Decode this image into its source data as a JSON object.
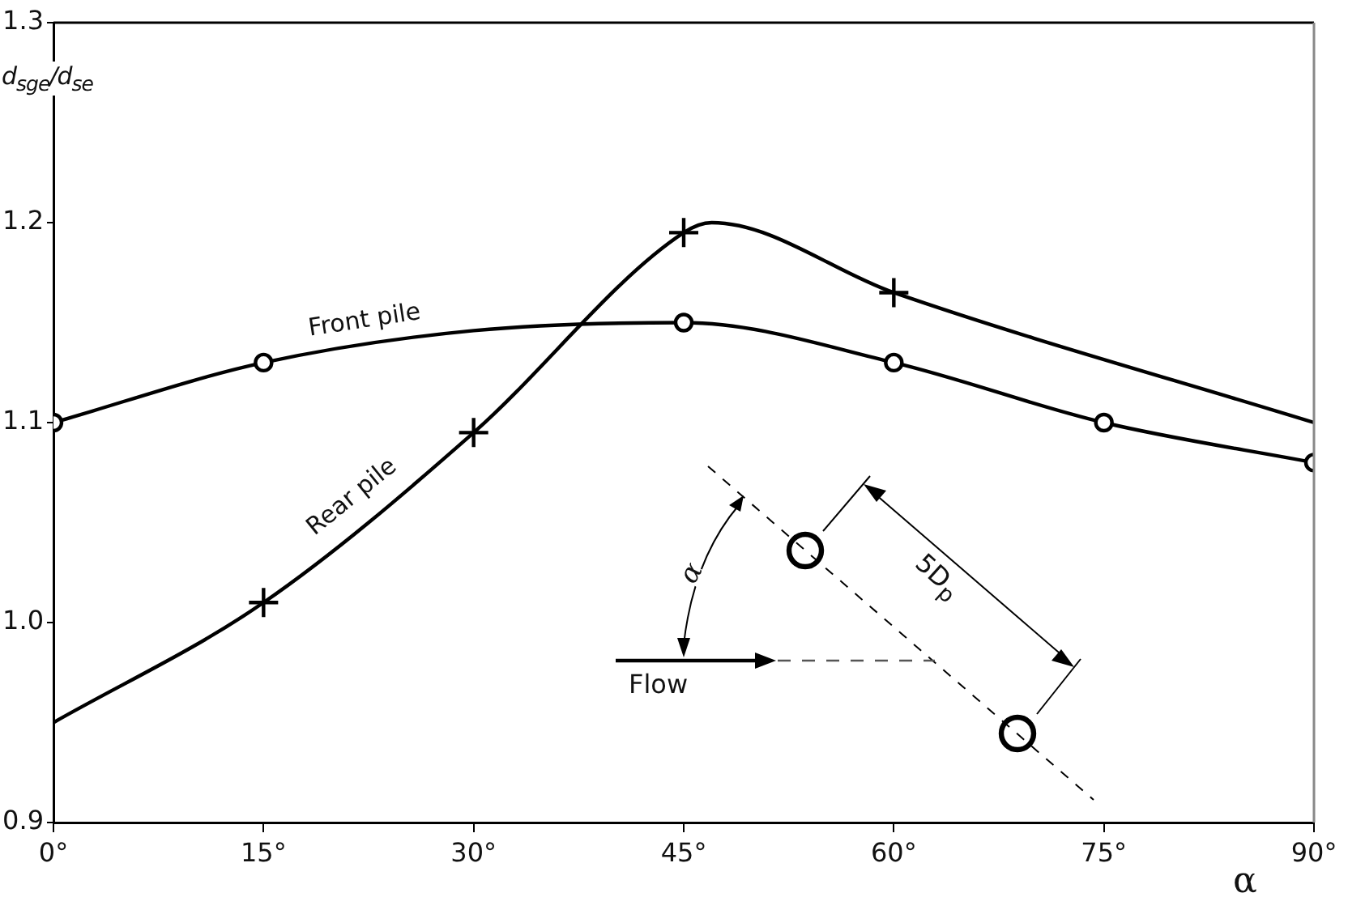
{
  "chart_data": {
    "type": "line",
    "xlabel": "α",
    "ylabel": "d$_{sge}$/d$_{se}$",
    "xlim": [
      0,
      90
    ],
    "xticks": [
      {
        "value": 0,
        "label": "0°"
      },
      {
        "value": 15,
        "label": "15°"
      },
      {
        "value": 30,
        "label": "30°"
      },
      {
        "value": 45,
        "label": "45°"
      },
      {
        "value": 60,
        "label": "60°"
      },
      {
        "value": 75,
        "label": "75°"
      },
      {
        "value": 90,
        "label": "90°"
      }
    ],
    "ylim": [
      0.9,
      1.3
    ],
    "yticks": [
      0.9,
      {
        "value": 1.0,
        "label": "1.0"
      },
      1.1,
      1.2,
      1.3
    ],
    "grid": false,
    "legend": false,
    "series": [
      {
        "name": "Front pile",
        "type": "line",
        "x": [
          0,
          15,
          30,
          45,
          60,
          75,
          90
        ],
        "values": [
          1.1,
          1.13,
          1.146,
          1.15,
          1.13,
          1.1,
          1.08
        ],
        "color": "#000000",
        "marker": "none"
      },
      {
        "type": "scatter",
        "x": [
          0,
          15,
          45,
          60,
          75,
          90
        ],
        "values": [
          1.1,
          1.13,
          1.15,
          1.13,
          1.1,
          1.08
        ],
        "color": "#000000",
        "marker": "circle"
      },
      {
        "name": "Rear pile",
        "type": "line",
        "x": [
          0,
          15,
          30,
          45,
          47,
          60,
          90
        ],
        "values": [
          0.95,
          1.01,
          1.095,
          1.195,
          1.2,
          1.165,
          1.1
        ],
        "color": "#000000",
        "marker": "none"
      },
      {
        "type": "scatter",
        "x": [
          15,
          30,
          45,
          60
        ],
        "values": [
          1.01,
          1.095,
          1.195,
          1.165
        ],
        "color": "#000000",
        "marker": "cross"
      }
    ],
    "annotations": [
      "α",
      "Flow",
      "5D$_{p}$"
    ]
  }
}
